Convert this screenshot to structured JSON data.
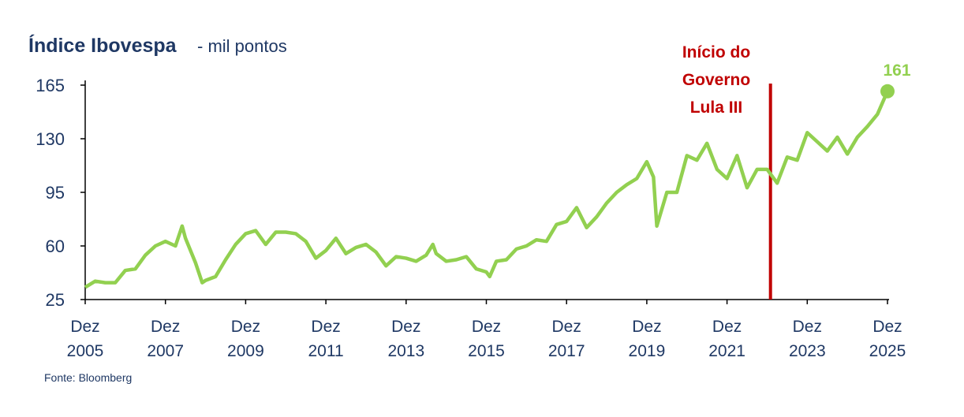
{
  "chart_data": {
    "type": "line",
    "title": "Índice Ibovespa",
    "subtitle": "- mil pontos",
    "source": "Fonte: Bloomberg",
    "x": [
      "2005-12",
      "2006-03",
      "2006-06",
      "2006-09",
      "2006-12",
      "2007-03",
      "2007-06",
      "2007-09",
      "2007-12",
      "2008-03",
      "2008-05",
      "2008-06",
      "2008-09",
      "2008-11",
      "2008-12",
      "2009-03",
      "2009-06",
      "2009-09",
      "2009-12",
      "2010-03",
      "2010-06",
      "2010-09",
      "2010-12",
      "2011-03",
      "2011-06",
      "2011-09",
      "2011-12",
      "2012-03",
      "2012-06",
      "2012-09",
      "2012-12",
      "2013-03",
      "2013-06",
      "2013-09",
      "2013-12",
      "2014-03",
      "2014-06",
      "2014-08",
      "2014-09",
      "2014-12",
      "2015-03",
      "2015-06",
      "2015-09",
      "2015-12",
      "2016-01",
      "2016-03",
      "2016-06",
      "2016-09",
      "2016-12",
      "2017-03",
      "2017-06",
      "2017-09",
      "2017-12",
      "2018-03",
      "2018-06",
      "2018-09",
      "2018-12",
      "2019-03",
      "2019-06",
      "2019-09",
      "2019-12",
      "2020-02",
      "2020-03",
      "2020-06",
      "2020-09",
      "2020-12",
      "2021-03",
      "2021-06",
      "2021-09",
      "2021-12",
      "2022-03",
      "2022-06",
      "2022-09",
      "2022-12",
      "2023-03",
      "2023-06",
      "2023-09",
      "2023-12",
      "2024-03",
      "2024-06",
      "2024-09",
      "2024-12",
      "2025-03",
      "2025-06",
      "2025-09",
      "2025-12"
    ],
    "series": [
      {
        "name": "Ibovespa",
        "color": "#92d050",
        "values": [
          33,
          37,
          36,
          36,
          44,
          45,
          54,
          60,
          63,
          60,
          73,
          65,
          49,
          36,
          37.5,
          40,
          51,
          61,
          68,
          70,
          61,
          69,
          69,
          68,
          63,
          52,
          57,
          65,
          55,
          59,
          61,
          56,
          47,
          53,
          52,
          50,
          54,
          61,
          55,
          50,
          51,
          53,
          45,
          43,
          40,
          50,
          51,
          58,
          60,
          64,
          63,
          74,
          76,
          85,
          72,
          79,
          88,
          95,
          100,
          104,
          115,
          105,
          73,
          95,
          95,
          119,
          116,
          127,
          110,
          104,
          119,
          98,
          110,
          110,
          101,
          118,
          116,
          134,
          128,
          122,
          131,
          120,
          131,
          138,
          146,
          161
        ]
      }
    ],
    "ylim": [
      25,
      165
    ],
    "yticks": [
      25,
      60,
      95,
      130,
      165
    ],
    "xlim": [
      "2005-12",
      "2025-12"
    ],
    "xticks": [
      {
        "value": "2005-12",
        "label": "Dez 2005"
      },
      {
        "value": "2007-12",
        "label": "Dez 2007"
      },
      {
        "value": "2009-12",
        "label": "Dez 2009"
      },
      {
        "value": "2011-12",
        "label": "Dez 2011"
      },
      {
        "value": "2013-12",
        "label": "Dez 2013"
      },
      {
        "value": "2015-12",
        "label": "Dez 2015"
      },
      {
        "value": "2017-12",
        "label": "Dez 2017"
      },
      {
        "value": "2019-12",
        "label": "Dez 2019"
      },
      {
        "value": "2021-12",
        "label": "Dez 2021"
      },
      {
        "value": "2023-12",
        "label": "Dez 2023"
      },
      {
        "value": "2025-12",
        "label": "Dez 2025"
      }
    ],
    "event": {
      "x": "2023-01",
      "color": "#c00000",
      "label": [
        "Início do",
        "Governo",
        "Lula III"
      ]
    },
    "grid": false
  }
}
